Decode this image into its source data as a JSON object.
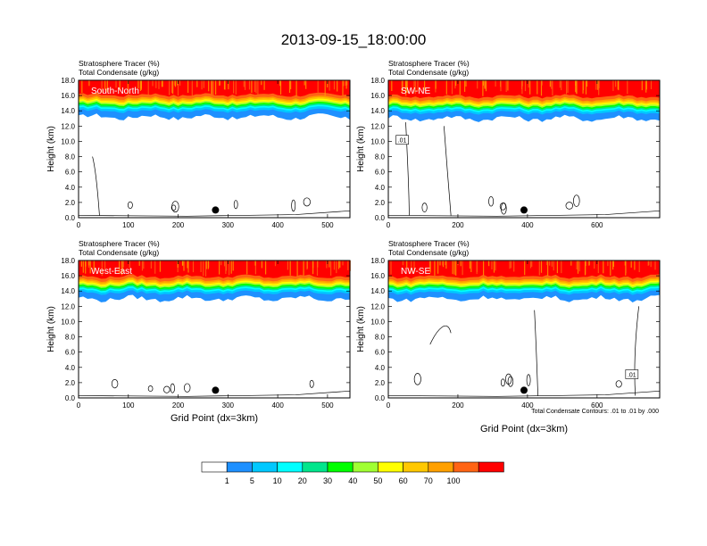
{
  "title": "2013-09-15_18:00:00",
  "colors": {
    "bands": [
      "#ffffff",
      "#1e90ff",
      "#00c8ff",
      "#00ffff",
      "#00e68c",
      "#00ff00",
      "#a0ff32",
      "#ffff00",
      "#ffc800",
      "#ffa000",
      "#ff6414",
      "#ff0000"
    ],
    "outline": "#000000",
    "contour": "#000000"
  },
  "colorbar": {
    "labels": [
      "1",
      "5",
      "10",
      "20",
      "30",
      "40",
      "50",
      "60",
      "70",
      "100"
    ]
  },
  "contour_note": "Total Condensate Contours: .01 to .01 by .000",
  "chart_data": [
    {
      "type": "heatmap",
      "name": "South-North",
      "label": "South-North",
      "title_lines": [
        "Stratosphere Tracer   (%)",
        "Total Condensate   (g/kg)"
      ],
      "ylabel": "Height (km)",
      "xlabel": "",
      "xlim": [
        0,
        545
      ],
      "ylim": [
        0,
        18
      ],
      "xticks": [
        0,
        100,
        200,
        300,
        400,
        500
      ],
      "yticks": [
        "0.0",
        "2.0",
        "4.0",
        "6.0",
        "8.0",
        "10.0",
        "12.0",
        "14.0",
        "16.0",
        "18.0"
      ],
      "tracer_top_km": 14.6,
      "contour_label": "",
      "marker": {
        "x": 275,
        "y": 1.0
      }
    },
    {
      "type": "heatmap",
      "name": "SW-NE",
      "label": "SW-NE",
      "title_lines": [
        "Stratosphere Tracer   (%)",
        "Total Condensate   (g/kg)"
      ],
      "ylabel": "Height (km)",
      "xlabel": "",
      "xlim": [
        0,
        780
      ],
      "ylim": [
        0,
        18
      ],
      "xticks": [
        0,
        200,
        400,
        600
      ],
      "yticks": [
        "0.0",
        "2.0",
        "4.0",
        "6.0",
        "8.0",
        "10.0",
        "12.0",
        "14.0",
        "16.0",
        "18.0"
      ],
      "tracer_top_km": 14.4,
      "contour_label": ".01",
      "marker": {
        "x": 390,
        "y": 1.0
      }
    },
    {
      "type": "heatmap",
      "name": "West-East",
      "label": "West-East",
      "title_lines": [
        "Stratosphere Tracer   (%)",
        "Total Condensate   (g/kg)"
      ],
      "ylabel": "Height (km)",
      "xlabel": "Grid Point (dx=3km)",
      "xlim": [
        0,
        545
      ],
      "ylim": [
        0,
        18
      ],
      "xticks": [
        0,
        100,
        200,
        300,
        400,
        500
      ],
      "yticks": [
        "0.0",
        "2.0",
        "4.0",
        "6.0",
        "8.0",
        "10.0",
        "12.0",
        "14.0",
        "16.0",
        "18.0"
      ],
      "tracer_top_km": 14.4,
      "contour_label": "",
      "marker": {
        "x": 275,
        "y": 1.0
      }
    },
    {
      "type": "heatmap",
      "name": "NW-SE",
      "label": "NW-SE",
      "title_lines": [
        "Stratosphere Tracer   (%)",
        "Total Condensate   (g/kg)"
      ],
      "ylabel": "Height (km)",
      "xlabel": "Grid Point (dx=3km)",
      "xlim": [
        0,
        780
      ],
      "ylim": [
        0,
        18
      ],
      "xticks": [
        0,
        200,
        400,
        600
      ],
      "yticks": [
        "0.0",
        "2.0",
        "4.0",
        "6.0",
        "8.0",
        "10.0",
        "12.0",
        "14.0",
        "16.0",
        "18.0"
      ],
      "tracer_top_km": 14.4,
      "contour_label": ".01",
      "marker": {
        "x": 390,
        "y": 1.0
      }
    }
  ]
}
